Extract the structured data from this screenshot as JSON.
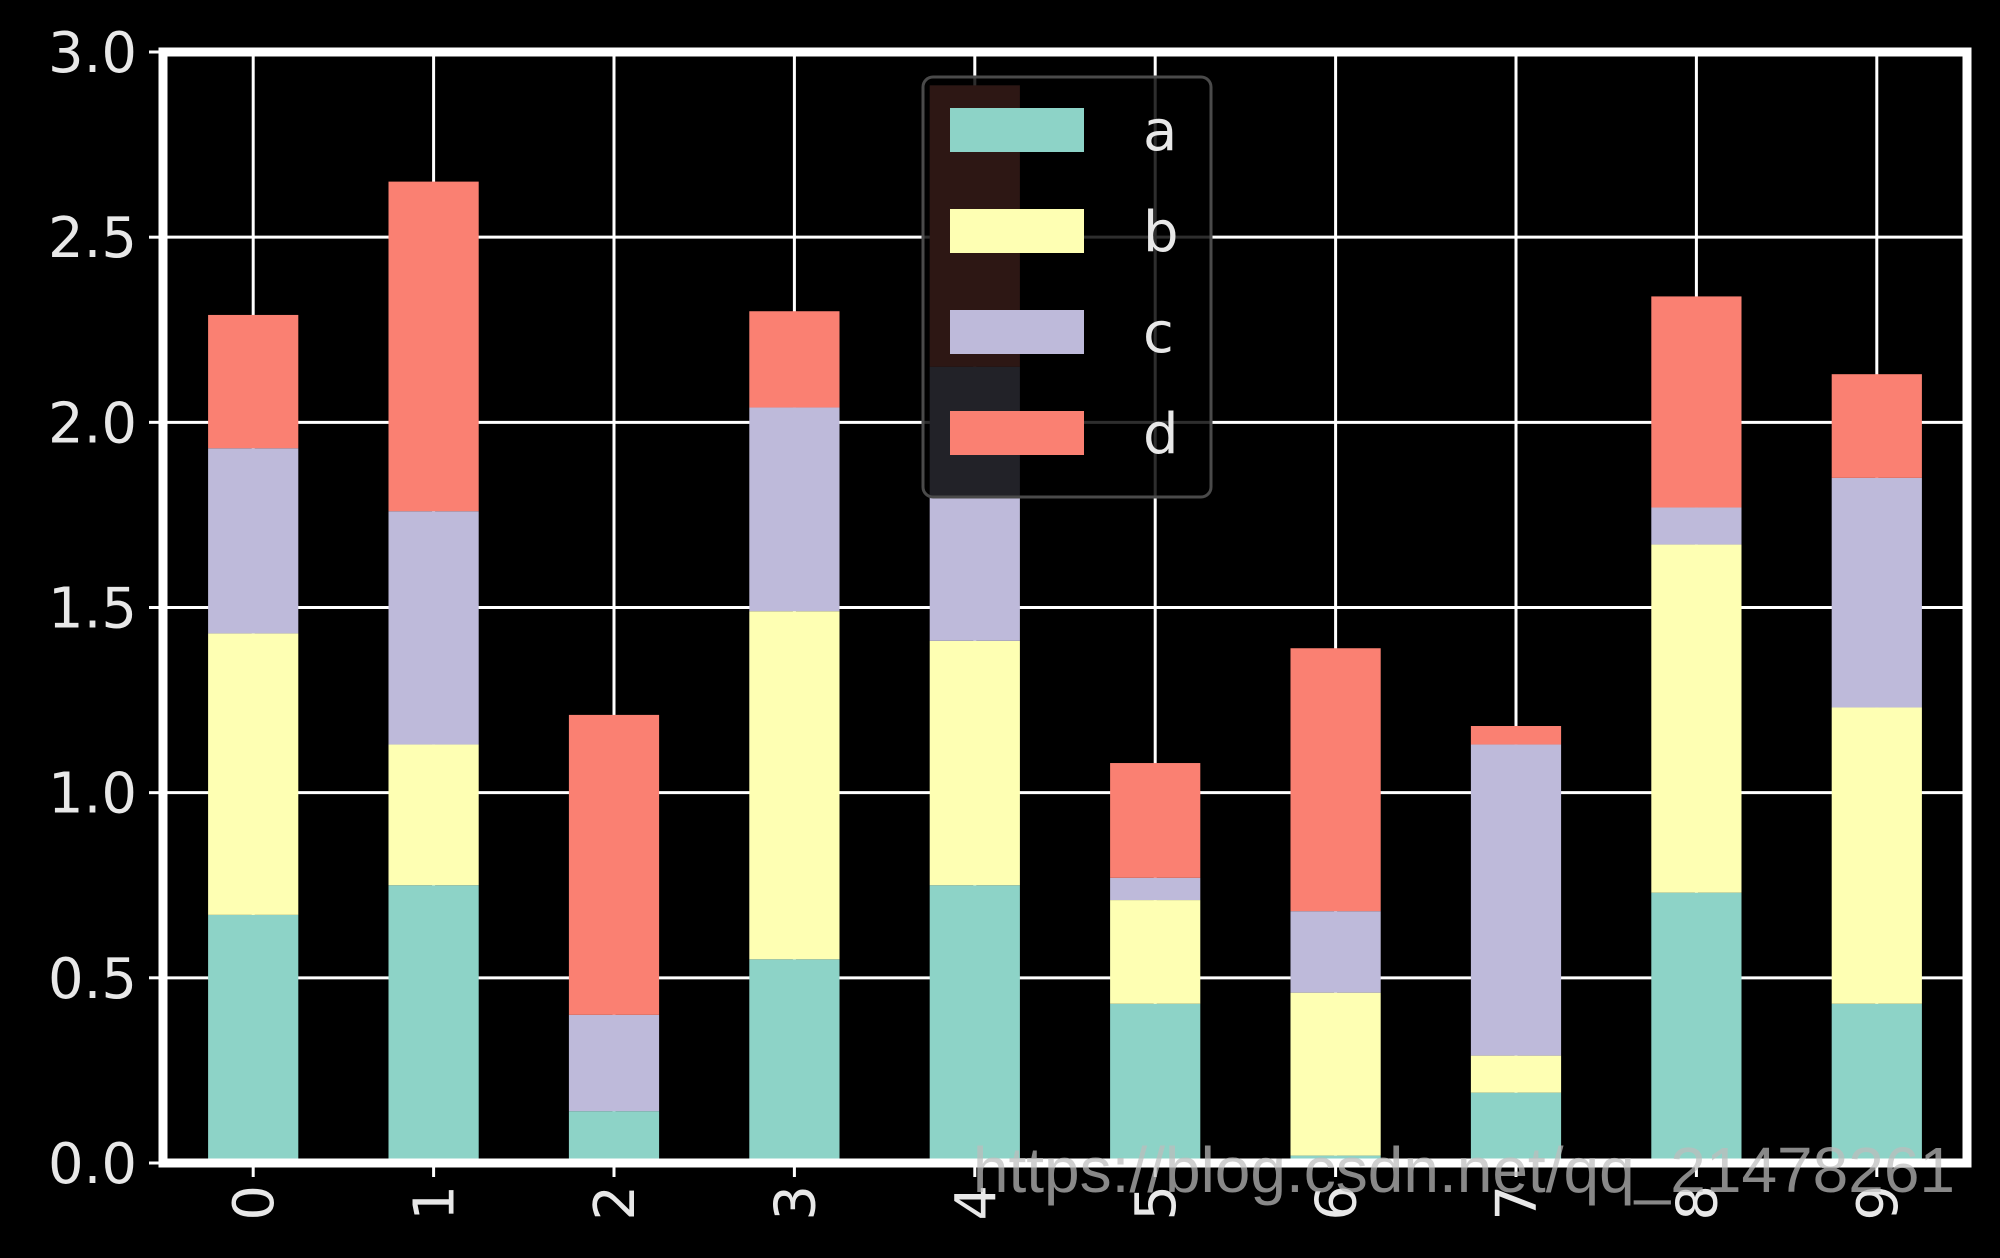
{
  "chart_data": {
    "type": "bar",
    "stacked": true,
    "categories": [
      "0",
      "1",
      "2",
      "3",
      "4",
      "5",
      "6",
      "7",
      "8",
      "9"
    ],
    "series": [
      {
        "name": "a",
        "color": "#8dd3c7",
        "values": [
          0.67,
          0.75,
          0.14,
          0.55,
          0.75,
          0.43,
          0.02,
          0.19,
          0.73,
          0.43
        ]
      },
      {
        "name": "b",
        "color": "#feffb3",
        "values": [
          0.76,
          0.38,
          0.0,
          0.94,
          0.66,
          0.28,
          0.44,
          0.1,
          0.94,
          0.8
        ]
      },
      {
        "name": "c",
        "color": "#bebada",
        "values": [
          0.5,
          0.63,
          0.26,
          0.55,
          0.74,
          0.06,
          0.22,
          0.84,
          0.1,
          0.62
        ]
      },
      {
        "name": "d",
        "color": "#fa8072",
        "values": [
          0.36,
          0.89,
          0.81,
          0.26,
          0.76,
          0.31,
          0.71,
          0.05,
          0.57,
          0.28
        ]
      }
    ],
    "ylim": [
      0,
      3.0
    ],
    "yticks": [
      "0.0",
      "0.5",
      "1.0",
      "1.5",
      "2.0",
      "2.5",
      "3.0"
    ],
    "xlabel": "",
    "ylabel": "",
    "title": "",
    "grid": true,
    "legend_position": "top-center",
    "watermark": "https://blog.csdn.net/qq_21478261"
  }
}
